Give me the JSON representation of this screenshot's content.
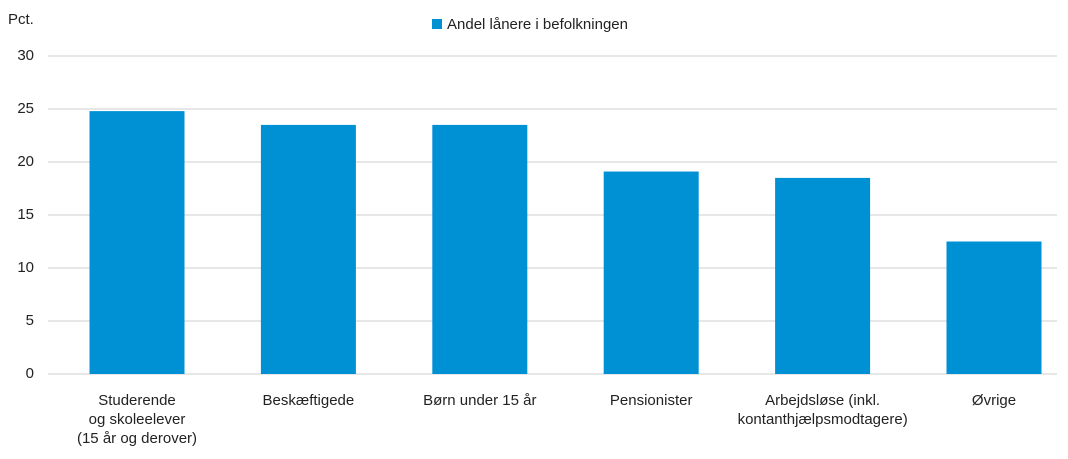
{
  "chart_data": {
    "type": "bar",
    "y_axis_label": "Pct.",
    "categories": [
      "Studerende\nog skoleelever\n(15 år og derover)",
      "Beskæftigede",
      "Børn under 15 år",
      "Pensionister",
      "Arbejdsløse (inkl.\nkontanthjælpsmodtagere)",
      "Øvrige"
    ],
    "series": [
      {
        "name": "Andel lånere i befolkningen",
        "color": "#0091d5",
        "values": [
          24.8,
          23.5,
          23.5,
          19.1,
          18.5,
          12.5
        ]
      }
    ],
    "ylim": [
      0,
      30
    ],
    "yticks": [
      0,
      5,
      10,
      15,
      20,
      25,
      30
    ],
    "grid": true,
    "legend": "top"
  }
}
